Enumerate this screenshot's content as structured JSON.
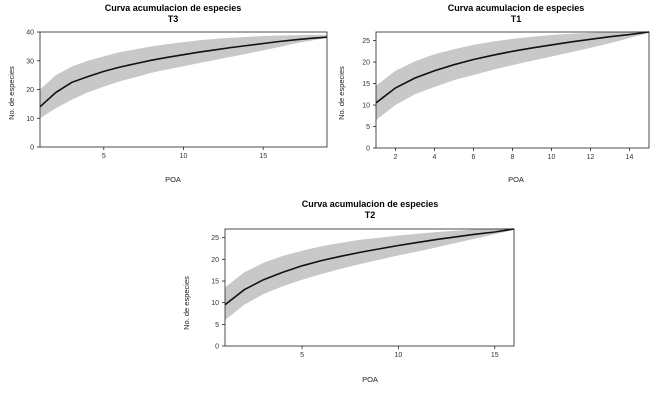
{
  "chart_data": [
    {
      "type": "line",
      "title": "Curva acumulacion de especies",
      "subtitle": "T3",
      "xlabel": "POA",
      "ylabel": "No. de especies",
      "xlim": [
        1,
        19
      ],
      "ylim": [
        0,
        40
      ],
      "xticks": [
        5,
        10,
        15
      ],
      "yticks": [
        0,
        10,
        20,
        30,
        40
      ],
      "x": [
        1,
        2,
        3,
        4,
        5,
        6,
        7,
        8,
        9,
        10,
        11,
        12,
        13,
        14,
        15,
        16,
        17,
        18,
        19
      ],
      "mean": [
        14,
        19,
        22.5,
        24.5,
        26.3,
        27.8,
        29,
        30.2,
        31.2,
        32.1,
        33,
        33.8,
        34.6,
        35.3,
        36,
        36.7,
        37.3,
        37.8,
        38.2
      ],
      "lower": [
        10,
        13.5,
        16.5,
        19,
        21,
        22.8,
        24.3,
        25.8,
        27,
        28.1,
        29.2,
        30.3,
        31.4,
        32.5,
        33.6,
        34.8,
        36,
        37,
        38
      ],
      "upper": [
        20,
        25,
        28,
        30,
        31.5,
        33,
        34,
        35,
        35.8,
        36.5,
        37.1,
        37.6,
        38,
        38.3,
        38.6,
        38.8,
        38.9,
        39,
        39
      ]
    },
    {
      "type": "line",
      "title": "Curva acumulacion de especies",
      "subtitle": "T1",
      "xlabel": "POA",
      "ylabel": "No. de especies",
      "xlim": [
        1,
        15
      ],
      "ylim": [
        0,
        27
      ],
      "xticks": [
        2,
        4,
        6,
        8,
        10,
        12,
        14
      ],
      "yticks": [
        0,
        5,
        10,
        15,
        20,
        25
      ],
      "x": [
        1,
        2,
        3,
        4,
        5,
        6,
        7,
        8,
        9,
        10,
        11,
        12,
        13,
        14,
        15
      ],
      "mean": [
        10.5,
        14,
        16.3,
        18,
        19.4,
        20.6,
        21.6,
        22.5,
        23.3,
        24,
        24.7,
        25.3,
        25.9,
        26.4,
        27
      ],
      "lower": [
        6.5,
        10,
        12.5,
        14.2,
        15.8,
        17,
        18.2,
        19.3,
        20.3,
        21.3,
        22.3,
        23.3,
        24.4,
        25.6,
        26.8
      ],
      "upper": [
        14.5,
        18,
        20.2,
        21.8,
        23,
        24,
        24.8,
        25.4,
        25.9,
        26.3,
        26.6,
        26.8,
        27,
        27.1,
        27.2
      ]
    },
    {
      "type": "line",
      "title": "Curva acumulacion de especies",
      "subtitle": "T2",
      "xlabel": "POA",
      "ylabel": "No. de especies",
      "xlim": [
        1,
        16
      ],
      "ylim": [
        0,
        27
      ],
      "xticks": [
        5,
        10,
        15
      ],
      "yticks": [
        0,
        5,
        10,
        15,
        20,
        25
      ],
      "x": [
        1,
        2,
        3,
        4,
        5,
        6,
        7,
        8,
        9,
        10,
        11,
        12,
        13,
        14,
        15,
        16
      ],
      "mean": [
        9.5,
        13,
        15.3,
        17,
        18.5,
        19.7,
        20.7,
        21.6,
        22.4,
        23.2,
        23.9,
        24.6,
        25.2,
        25.8,
        26.3,
        27
      ],
      "lower": [
        6,
        9.5,
        12,
        13.8,
        15.3,
        16.6,
        17.8,
        18.9,
        19.9,
        20.9,
        21.8,
        22.8,
        23.8,
        24.8,
        25.8,
        26.8
      ],
      "upper": [
        13.5,
        17,
        19.2,
        20.8,
        22,
        23,
        23.8,
        24.5,
        25,
        25.5,
        25.9,
        26.3,
        26.6,
        26.9,
        27.1,
        27.2
      ]
    }
  ]
}
